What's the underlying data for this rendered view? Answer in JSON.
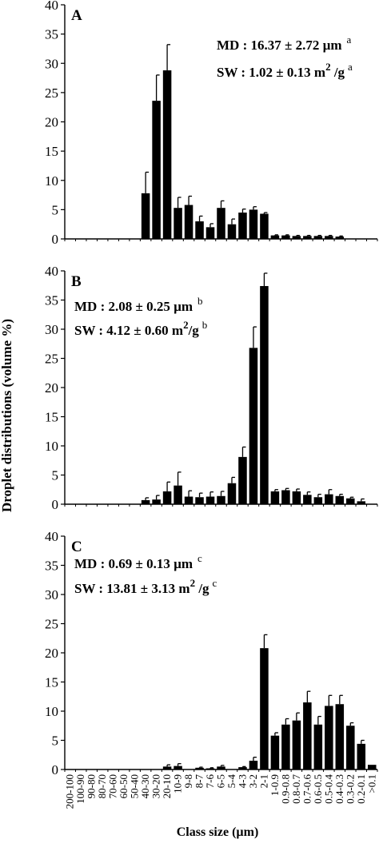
{
  "figure": {
    "ylabel": "Droplet distributions (volume %)",
    "xlabel": "Class size (µm)"
  },
  "chart_data": [
    {
      "type": "bar",
      "panel": "A",
      "ylim": [
        0,
        40
      ],
      "yticks": [
        0,
        5,
        10,
        15,
        20,
        25,
        30,
        35,
        40
      ],
      "annotation": {
        "md_text": "MD : 16.37 ± 2.72 µm",
        "md_sup": "a",
        "sw_text": "SW : 1.02 ± 0.13 m",
        "sw_exp": "2",
        "sw_unit": " /g",
        "sw_sup": "a"
      },
      "categories": [
        "200-100",
        "100-90",
        "90-80",
        "80-70",
        "70-60",
        "60-50",
        "50-40",
        "40-30",
        "30-20",
        "20-10",
        "10-9",
        "9-8",
        "8-7",
        "7-6",
        "6-5",
        "5-4",
        "4-3",
        "3-2",
        "2-1",
        "1-0.9",
        "0.9-0.8",
        "0.8-0.7",
        "0.7-0.6",
        "0.6-0.5",
        "0.5-0.4",
        "0.4-0.3",
        "0.3-0.2",
        "0.2-0.1",
        ">0.1"
      ],
      "values": [
        0,
        0,
        0,
        0,
        0,
        0,
        0,
        7.8,
        23.6,
        28.8,
        5.3,
        5.8,
        3.0,
        2.0,
        5.3,
        2.5,
        4.5,
        5.0,
        4.3,
        0.6,
        0.6,
        0.5,
        0.5,
        0.5,
        0.5,
        0.4,
        0,
        0,
        0
      ],
      "errors": [
        0,
        0,
        0,
        0,
        0,
        0,
        0,
        3.6,
        4.4,
        4.4,
        1.8,
        1.5,
        0.9,
        0.6,
        1.2,
        0.9,
        0.6,
        0.5,
        0.2,
        0.1,
        0.1,
        0.1,
        0.1,
        0.1,
        0.1,
        0.1,
        0,
        0,
        0
      ]
    },
    {
      "type": "bar",
      "panel": "B",
      "ylim": [
        0,
        40
      ],
      "yticks": [
        0,
        5,
        10,
        15,
        20,
        25,
        30,
        35,
        40
      ],
      "annotation": {
        "md_text": "MD : 2.08 ± 0.25 µm",
        "md_sup": "b",
        "sw_text": "SW : 4.12 ± 0.60 m",
        "sw_exp": "2",
        "sw_unit": "/g",
        "sw_sup": "b"
      },
      "categories": [
        "200-100",
        "100-90",
        "90-80",
        "80-70",
        "70-60",
        "60-50",
        "50-40",
        "40-30",
        "30-20",
        "20-10",
        "10-9",
        "9-8",
        "8-7",
        "7-6",
        "6-5",
        "5-4",
        "4-3",
        "3-2",
        "2-1",
        "1-0.9",
        "0.9-0.8",
        "0.8-0.7",
        "0.7-0.6",
        "0.6-0.5",
        "0.5-0.4",
        "0.4-0.3",
        "0.3-0.2",
        "0.2-0.1",
        ">0.1"
      ],
      "values": [
        0,
        0,
        0,
        0,
        0,
        0,
        0,
        0.7,
        0.8,
        2.2,
        3.2,
        1.3,
        1.2,
        1.3,
        1.4,
        3.6,
        8.1,
        26.8,
        37.4,
        2.2,
        2.4,
        2.2,
        1.6,
        1.2,
        1.7,
        1.4,
        1.0,
        0.5,
        0
      ],
      "errors": [
        0,
        0,
        0,
        0,
        0,
        0,
        0,
        0.4,
        0.7,
        1.6,
        2.3,
        1.0,
        0.7,
        0.8,
        0.8,
        1.0,
        1.7,
        3.6,
        2.2,
        0.3,
        0.3,
        0.4,
        0.5,
        0.5,
        0.8,
        0.3,
        0.2,
        0.4,
        0
      ]
    },
    {
      "type": "bar",
      "panel": "C",
      "ylim": [
        0,
        40
      ],
      "yticks": [
        0,
        5,
        10,
        15,
        20,
        25,
        30,
        35,
        40
      ],
      "annotation": {
        "md_text": "MD : 0.69 ± 0.13 µm",
        "md_sup": "c",
        "sw_text": "SW : 13.81 ± 3.13 m",
        "sw_exp": "2",
        "sw_unit": " /g",
        "sw_sup": "c"
      },
      "categories": [
        "200-100",
        "100-90",
        "90-80",
        "80-70",
        "70-60",
        "60-50",
        "50-40",
        "40-30",
        "30-20",
        "20-10",
        "10-9",
        "9-8",
        "8-7",
        "7-6",
        "6-5",
        "5-4",
        "4-3",
        "3-2",
        "2-1",
        "1-0.9",
        "0.9-0.8",
        "0.8-0.7",
        "0.7-0.6",
        "0.6-0.5",
        "0.5-0.4",
        "0.4-0.3",
        "0.3-0.2",
        "0.2-0.1",
        ">0.1"
      ],
      "values": [
        0,
        0,
        0,
        0,
        0,
        0,
        0,
        0,
        0,
        0.5,
        0.6,
        0,
        0.3,
        0.2,
        0.5,
        0,
        0.4,
        1.5,
        20.8,
        5.8,
        7.7,
        8.4,
        11.5,
        7.7,
        10.9,
        11.2,
        7.5,
        4.4,
        0.8
      ],
      "errors": [
        0,
        0,
        0,
        0,
        0,
        0,
        0,
        0,
        0,
        0.3,
        0.4,
        0,
        0.1,
        0.1,
        0.2,
        0,
        0.1,
        0.6,
        2.3,
        0.5,
        1.0,
        1.3,
        1.9,
        1.4,
        1.8,
        1.5,
        0.5,
        0.6,
        0
      ]
    }
  ]
}
